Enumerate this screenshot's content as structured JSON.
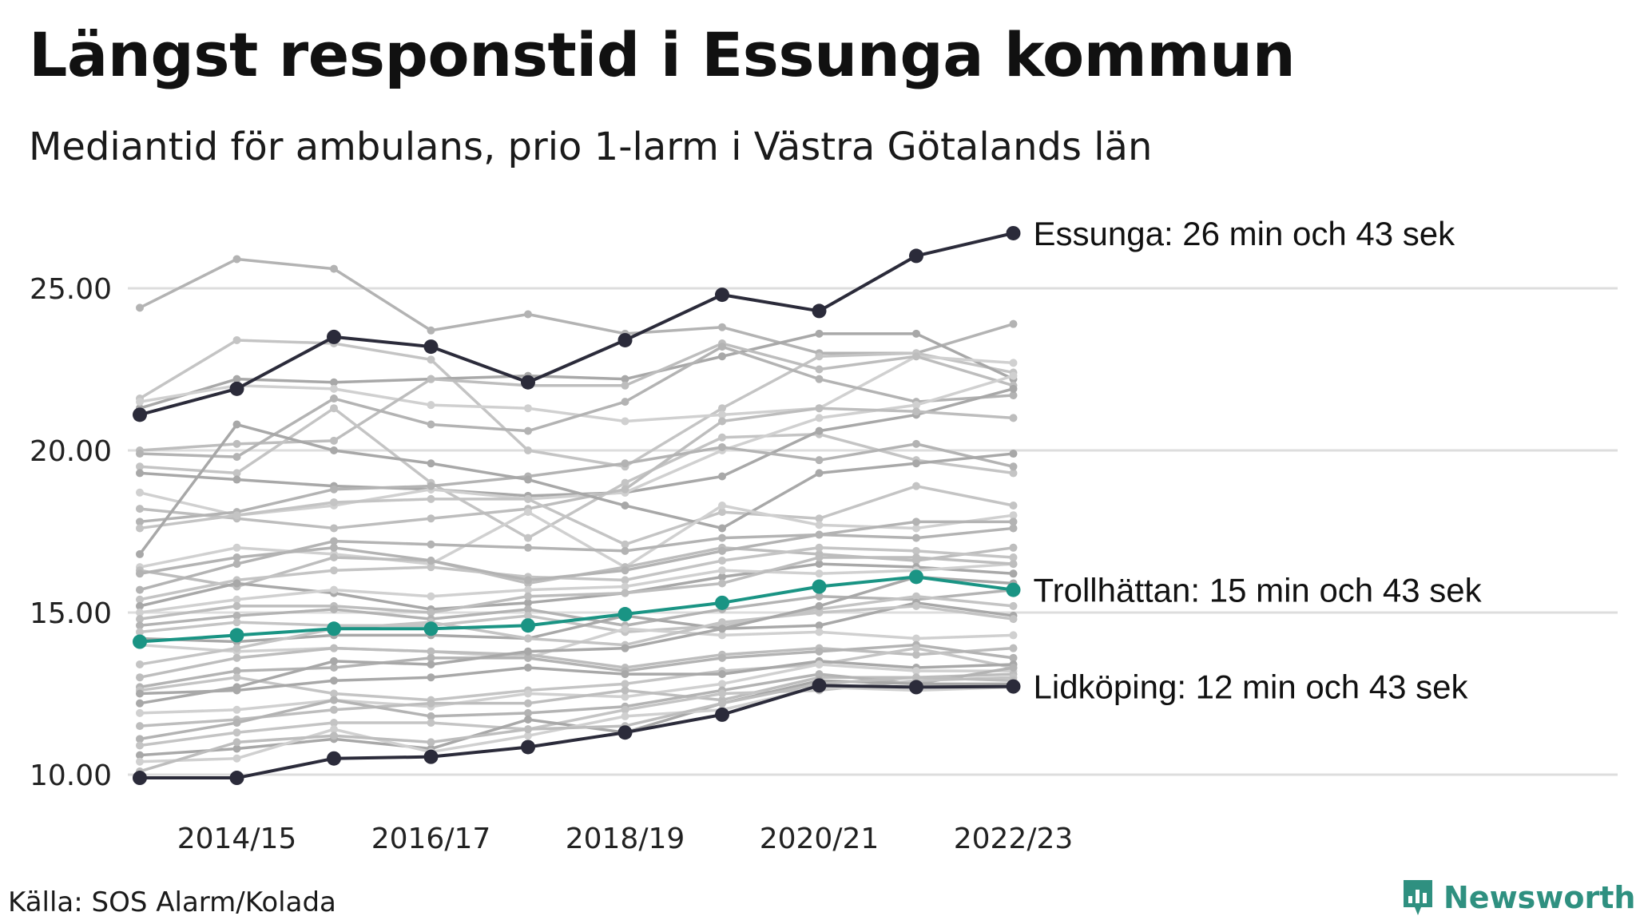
{
  "title": "Längst responstid i Essunga kommun",
  "subtitle": "Mediantid för ambulans, prio 1-larm i Västra Götalands län",
  "source": "Källa: SOS Alarm/Kolada",
  "brand": {
    "name": "Newsworthy",
    "color": "#2f9080"
  },
  "colors": {
    "highlight_dark": "#2b2b3a",
    "highlight_teal": "#1a9484",
    "grid": "#dddddd"
  },
  "chart_data": {
    "type": "line",
    "title": "Längst responstid i Essunga kommun",
    "subtitle": "Mediantid för ambulans, prio 1-larm i Västra Götalands län",
    "ylabel": "",
    "xlabel": "",
    "ylim": [
      9.5,
      27.5
    ],
    "yticks": [
      10,
      15,
      20,
      25
    ],
    "ytick_labels": [
      "10.00",
      "15.00",
      "20.00",
      "25.00"
    ],
    "x": [
      "2013/14",
      "2014/15",
      "2015/16",
      "2016/17",
      "2017/18",
      "2018/19",
      "2019/20",
      "2020/21",
      "2021/22",
      "2022/23"
    ],
    "xtick_labels": [
      "2014/15",
      "2016/17",
      "2018/19",
      "2020/21",
      "2022/23"
    ],
    "highlighted": [
      {
        "name": "Essunga",
        "label": "Essunga: 26 min och 43 sek",
        "color": "#2b2b3a",
        "values": [
          21.1,
          21.9,
          23.5,
          23.2,
          22.1,
          23.4,
          24.8,
          24.3,
          26.0,
          26.7
        ]
      },
      {
        "name": "Trollhättan",
        "label": "Trollhättan: 15 min och 43 sek",
        "color": "#1a9484",
        "values": [
          14.1,
          14.3,
          14.5,
          14.5,
          14.6,
          14.95,
          15.3,
          15.8,
          16.1,
          15.7
        ]
      },
      {
        "name": "Lidköping",
        "label": "Lidköping: 12 min och 43 sek",
        "color": "#2b2b3a",
        "values": [
          9.9,
          9.9,
          10.5,
          10.55,
          10.85,
          11.3,
          11.85,
          12.75,
          12.7,
          12.72
        ]
      }
    ],
    "background_series": [
      {
        "values": [
          24.4,
          25.9,
          25.6,
          23.7,
          24.2,
          23.6,
          23.8,
          23.0,
          23.0,
          23.9
        ]
      },
      {
        "values": [
          21.6,
          23.4,
          23.3,
          22.8,
          20.0,
          19.5,
          21.3,
          22.9,
          23.0,
          22.4
        ]
      },
      {
        "values": [
          21.3,
          22.2,
          22.1,
          22.2,
          22.3,
          22.2,
          22.9,
          23.6,
          23.6,
          22.2
        ]
      },
      {
        "values": [
          21.5,
          22.0,
          21.9,
          21.4,
          21.3,
          20.9,
          21.1,
          21.3,
          22.9,
          22.7
        ]
      },
      {
        "values": [
          20.0,
          20.2,
          20.3,
          22.2,
          22.0,
          22.0,
          23.3,
          22.5,
          22.9,
          22.0
        ]
      },
      {
        "values": [
          19.9,
          19.8,
          21.6,
          20.8,
          20.6,
          21.5,
          23.2,
          22.2,
          21.5,
          21.7
        ]
      },
      {
        "values": [
          19.5,
          19.3,
          21.3,
          19.0,
          17.3,
          19.0,
          20.4,
          20.5,
          19.7,
          19.3
        ]
      },
      {
        "values": [
          19.3,
          19.1,
          18.9,
          18.8,
          18.6,
          18.7,
          19.2,
          20.6,
          21.1,
          21.9
        ]
      },
      {
        "values": [
          18.7,
          18.0,
          18.3,
          18.8,
          18.5,
          18.7,
          20.0,
          21.0,
          21.4,
          22.3
        ]
      },
      {
        "values": [
          18.2,
          17.9,
          17.6,
          17.9,
          18.2,
          18.8,
          20.9,
          21.3,
          21.2,
          21.0
        ]
      },
      {
        "values": [
          17.8,
          18.1,
          18.8,
          18.9,
          19.2,
          19.6,
          20.1,
          19.7,
          20.2,
          19.5
        ]
      },
      {
        "values": [
          17.6,
          18.0,
          18.4,
          18.5,
          18.5,
          17.1,
          18.1,
          17.9,
          18.9,
          18.3
        ]
      },
      {
        "values": [
          16.8,
          20.8,
          20.0,
          19.6,
          19.1,
          18.3,
          17.6,
          19.3,
          19.6,
          19.9
        ]
      },
      {
        "values": [
          16.4,
          17.0,
          16.8,
          16.5,
          18.1,
          16.4,
          18.3,
          17.7,
          17.6,
          18.0
        ]
      },
      {
        "values": [
          16.3,
          15.8,
          16.7,
          16.6,
          15.9,
          16.4,
          17.0,
          16.8,
          16.6,
          17.0
        ]
      },
      {
        "values": [
          15.7,
          16.5,
          17.2,
          17.1,
          17.0,
          16.9,
          17.3,
          17.4,
          17.8,
          17.8
        ]
      },
      {
        "values": [
          15.4,
          16.0,
          16.3,
          16.4,
          16.1,
          16.0,
          16.6,
          17.0,
          16.9,
          16.7
        ]
      },
      {
        "values": [
          15.2,
          15.9,
          15.6,
          15.1,
          15.3,
          15.6,
          16.1,
          16.5,
          16.4,
          16.2
        ]
      },
      {
        "values": [
          15.0,
          15.4,
          15.7,
          15.5,
          15.7,
          15.8,
          16.3,
          16.2,
          16.3,
          16.5
        ]
      },
      {
        "values": [
          14.8,
          15.2,
          15.2,
          15.0,
          15.5,
          15.6,
          15.9,
          16.7,
          16.7,
          16.5
        ]
      },
      {
        "values": [
          14.6,
          14.9,
          15.1,
          14.8,
          15.1,
          14.6,
          15.1,
          15.5,
          15.4,
          15.7
        ]
      },
      {
        "values": [
          14.4,
          14.7,
          14.6,
          14.6,
          14.9,
          14.4,
          14.6,
          15.1,
          15.5,
          15.2
        ]
      },
      {
        "values": [
          14.2,
          14.1,
          14.3,
          14.3,
          14.2,
          14.9,
          14.5,
          14.6,
          15.3,
          14.9
        ]
      },
      {
        "values": [
          14.0,
          13.8,
          13.9,
          13.8,
          13.6,
          14.5,
          14.3,
          14.4,
          14.2,
          14.3
        ]
      },
      {
        "values": [
          13.0,
          13.6,
          13.9,
          13.8,
          13.7,
          13.3,
          13.7,
          13.9,
          13.7,
          13.9
        ]
      },
      {
        "values": [
          12.7,
          13.2,
          13.3,
          13.6,
          13.6,
          13.2,
          13.6,
          13.8,
          14.0,
          13.6
        ]
      },
      {
        "values": [
          12.6,
          13.0,
          12.5,
          12.3,
          12.6,
          12.8,
          13.2,
          13.4,
          13.9,
          13.3
        ]
      },
      {
        "values": [
          12.5,
          12.6,
          12.9,
          13.0,
          13.3,
          13.1,
          13.1,
          13.5,
          13.3,
          13.4
        ]
      },
      {
        "values": [
          11.9,
          12.0,
          12.3,
          12.1,
          12.5,
          12.4,
          12.8,
          13.4,
          13.2,
          13.2
        ]
      },
      {
        "values": [
          11.5,
          11.7,
          12.0,
          12.2,
          12.2,
          12.6,
          12.3,
          13.0,
          13.0,
          13.1
        ]
      },
      {
        "values": [
          11.1,
          11.6,
          12.3,
          11.8,
          11.9,
          12.1,
          12.6,
          13.1,
          12.8,
          13.3
        ]
      },
      {
        "values": [
          10.9,
          11.3,
          11.6,
          11.6,
          11.4,
          12.0,
          12.5,
          12.6,
          12.9,
          13.0
        ]
      },
      {
        "values": [
          10.6,
          10.8,
          11.1,
          10.8,
          11.7,
          11.3,
          12.2,
          12.9,
          12.8,
          12.8
        ]
      },
      {
        "values": [
          10.4,
          10.5,
          11.4,
          10.7,
          11.2,
          11.8,
          12.0,
          12.7,
          12.6,
          12.7
        ]
      },
      {
        "values": [
          10.1,
          11.0,
          11.2,
          11.0,
          11.4,
          11.5,
          12.2,
          12.8,
          13.0,
          12.9
        ]
      },
      {
        "values": [
          16.2,
          16.7,
          17.0,
          16.6,
          16.0,
          16.3,
          16.9,
          17.4,
          17.3,
          17.6
        ]
      },
      {
        "values": [
          13.4,
          13.9,
          14.5,
          14.7,
          14.2,
          14.0,
          14.7,
          15.0,
          15.2,
          14.8
        ]
      },
      {
        "values": [
          12.2,
          12.7,
          13.5,
          13.4,
          13.8,
          13.9,
          14.5,
          15.2,
          16.1,
          15.9
        ]
      }
    ]
  }
}
